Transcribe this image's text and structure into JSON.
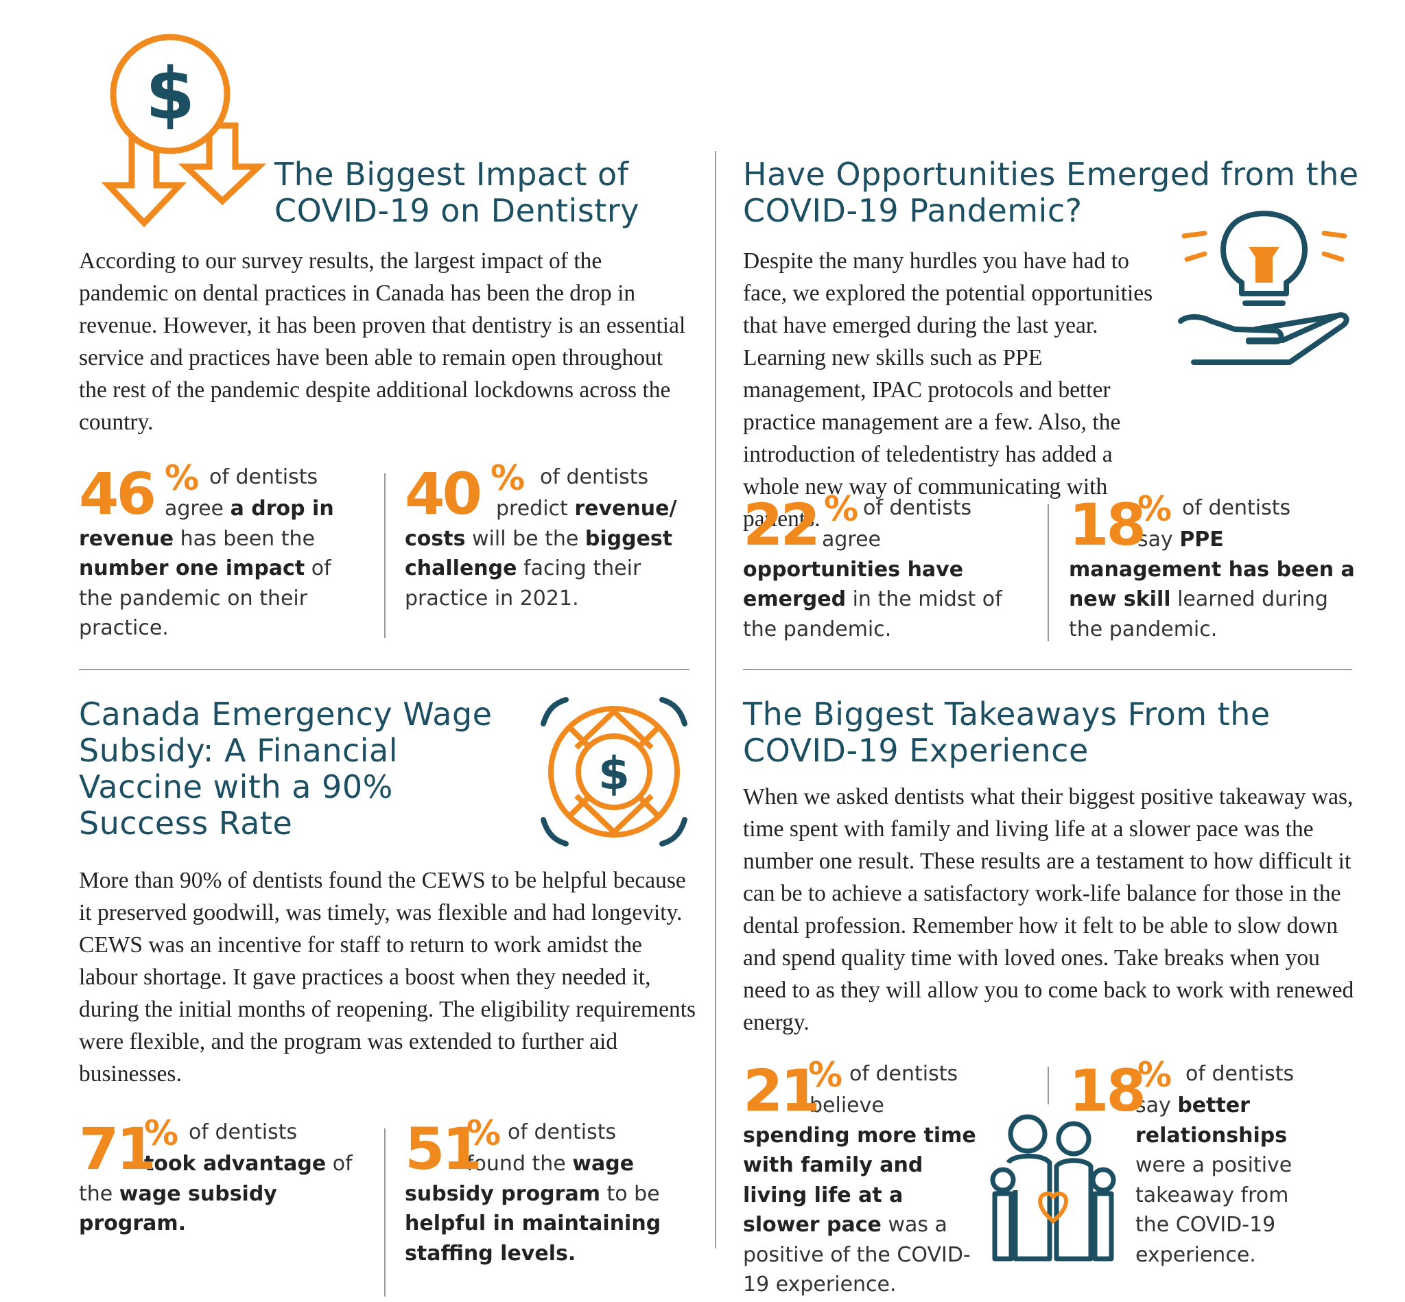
{
  "sections": {
    "impact": {
      "title": "The Biggest Impact of COVID-19 on Dentistry",
      "body": "According to our survey results, the largest impact of the pandemic on dental practices in Canada has been the drop in revenue. However, it has been proven that dentistry is an essential service and practices have been able to remain open throughout the rest of the pandemic despite additional lockdowns across the country.",
      "stats": [
        {
          "number": "46",
          "percent": "%",
          "lead": "of dentists",
          "text": "agree <b>a drop in revenue</b> has been the <b>number one impact</b> of the pandemic on their practice."
        },
        {
          "number": "40",
          "percent": "%",
          "lead": "of dentists",
          "text": "predict <b>revenue/ costs</b> will be the <b>biggest challenge</b> facing their practice in 2021."
        }
      ]
    },
    "opportunities": {
      "title": "Have Opportunities Emerged from the COVID-19 Pandemic?",
      "body": "Despite the many hurdles you have had to face, we explored the potential opportunities that have emerged during the last year. Learning new skills such as PPE management, IPAC protocols and better practice management are a few. Also, the introduction of teledentistry has added a whole new way of communicating with patients.",
      "stats": [
        {
          "number": "22",
          "percent": "%",
          "lead": "of dentists",
          "text": "agree <b>opportunities have emerged</b> in the midst of the pandemic."
        },
        {
          "number": "18",
          "percent": "%",
          "lead": "of dentists",
          "text": "say <b>PPE management has been a new skill</b> learned during the pandemic."
        }
      ]
    },
    "cews": {
      "title": "Canada Emergency Wage Subsidy: A Financial Vaccine with a 90% Success Rate",
      "body": "More than 90% of dentists found the CEWS to be helpful because it preserved goodwill, was timely, was flexible and had longevity. CEWS was an incentive for staff to return to work amidst the labour shortage. It gave practices a boost when they needed it, during the initial months of reopening. The eligibility requirements were flexible, and the program was extended to further aid businesses.",
      "stats": [
        {
          "number": "71",
          "percent": "%",
          "lead": "of dentists",
          "text": "<b>took advantage</b> of the <b>wage subsidy program.</b>"
        },
        {
          "number": "51",
          "percent": "%",
          "lead": "of dentists",
          "text": "found the <b>wage subsidy program</b> to be <b>helpful in maintaining staffing levels.</b>"
        }
      ]
    },
    "takeaways": {
      "title": "The Biggest Takeaways From the COVID-19 Experience",
      "body": "When we asked dentists what their biggest positive takeaway was, time spent with family and living life at a slower pace was the number one result. These results are a testament to how difficult it can be to achieve a satisfactory work-life balance for those in the dental profession. Remember how it felt to be able to slow down and spend quality time with loved ones. Take breaks when you need to as they will allow you to come back to work with renewed energy.",
      "stats": [
        {
          "number": "21",
          "percent": "%",
          "lead": "of dentists",
          "text": "believe <b>spending more time with family and living life at a slower pace</b> was a positive of the COVID-19 experience."
        },
        {
          "number": "18",
          "percent": "%",
          "lead": "of dentists",
          "text": "say <b>better relationships</b> were a positive takeaway from the COVID-19 experience."
        }
      ]
    }
  },
  "icons": {
    "impact": "dollar-coin-down-arrows-icon",
    "opportunities": "lightbulb-hand-icon",
    "cews": "life-ring-dollar-icon",
    "takeaways": "family-heart-icon",
    "dollar_glyph": "$"
  },
  "colors": {
    "accent": "#f18a1e",
    "heading": "#1d4f63",
    "icon_dark": "#1d4f63"
  }
}
